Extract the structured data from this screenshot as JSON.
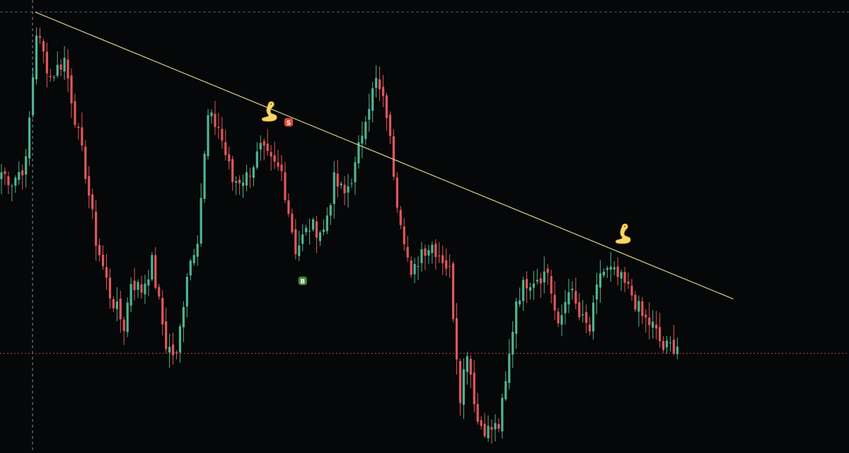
{
  "chart_data": {
    "type": "candlestick",
    "grid": false,
    "colors": {
      "background": "#050708",
      "up": "#4fb391",
      "down": "#e0575a",
      "trendline": "#d6d08c",
      "crosshair": "#8a8e95",
      "price_line": "#c24a3e",
      "sell_signal": "#e2472f",
      "buy_signal": "#3f8a2e",
      "annotation": "#f6d66b"
    },
    "ylim": [
      0,
      100
    ],
    "candle_count": 194,
    "anchors": [
      [
        0,
        62
      ],
      [
        3,
        60
      ],
      [
        7,
        64
      ],
      [
        10,
        93
      ],
      [
        14,
        83
      ],
      [
        18,
        87
      ],
      [
        22,
        70
      ],
      [
        24,
        62
      ],
      [
        27,
        47
      ],
      [
        31,
        35
      ],
      [
        35,
        28
      ],
      [
        37,
        38
      ],
      [
        40,
        36
      ],
      [
        43,
        42
      ],
      [
        47,
        24
      ],
      [
        50,
        21
      ],
      [
        53,
        40
      ],
      [
        56,
        48
      ],
      [
        59,
        74
      ],
      [
        62,
        72
      ],
      [
        66,
        60
      ],
      [
        70,
        61
      ],
      [
        74,
        67
      ],
      [
        77,
        64
      ],
      [
        80,
        62
      ],
      [
        84,
        45
      ],
      [
        88,
        50
      ],
      [
        92,
        49
      ],
      [
        95,
        60
      ],
      [
        98,
        57
      ],
      [
        101,
        63
      ],
      [
        104,
        75
      ],
      [
        107,
        82
      ],
      [
        110,
        75
      ],
      [
        113,
        56
      ],
      [
        115,
        48
      ],
      [
        117,
        38
      ],
      [
        120,
        45
      ],
      [
        123,
        46
      ],
      [
        126,
        43
      ],
      [
        128,
        40
      ],
      [
        131,
        13
      ],
      [
        133,
        23
      ],
      [
        136,
        7
      ],
      [
        139,
        5
      ],
      [
        142,
        6
      ],
      [
        144,
        15
      ],
      [
        147,
        34
      ],
      [
        150,
        38
      ],
      [
        153,
        39
      ],
      [
        156,
        40
      ],
      [
        159,
        27
      ],
      [
        162,
        37
      ],
      [
        165,
        30
      ],
      [
        168,
        27
      ],
      [
        171,
        40
      ],
      [
        174,
        40
      ],
      [
        177,
        38
      ],
      [
        180,
        35
      ],
      [
        183,
        30
      ],
      [
        186,
        28
      ],
      [
        189,
        23
      ],
      [
        193,
        24
      ]
    ],
    "trendline": {
      "from": [
        0,
        97
      ],
      "to": [
        209,
        34
      ]
    },
    "crosshair": {
      "index": 0,
      "price": 22
    },
    "last_price": 22,
    "signals": [
      {
        "type": "sell",
        "label": "S",
        "index": 80,
        "price": 73
      },
      {
        "type": "buy",
        "label": "B",
        "index": 84,
        "price": 38
      }
    ],
    "annotations": [
      {
        "icon": "cobra-icon",
        "index": 75,
        "price": 75
      },
      {
        "icon": "cobra-icon",
        "index": 176,
        "price": 48
      }
    ]
  }
}
